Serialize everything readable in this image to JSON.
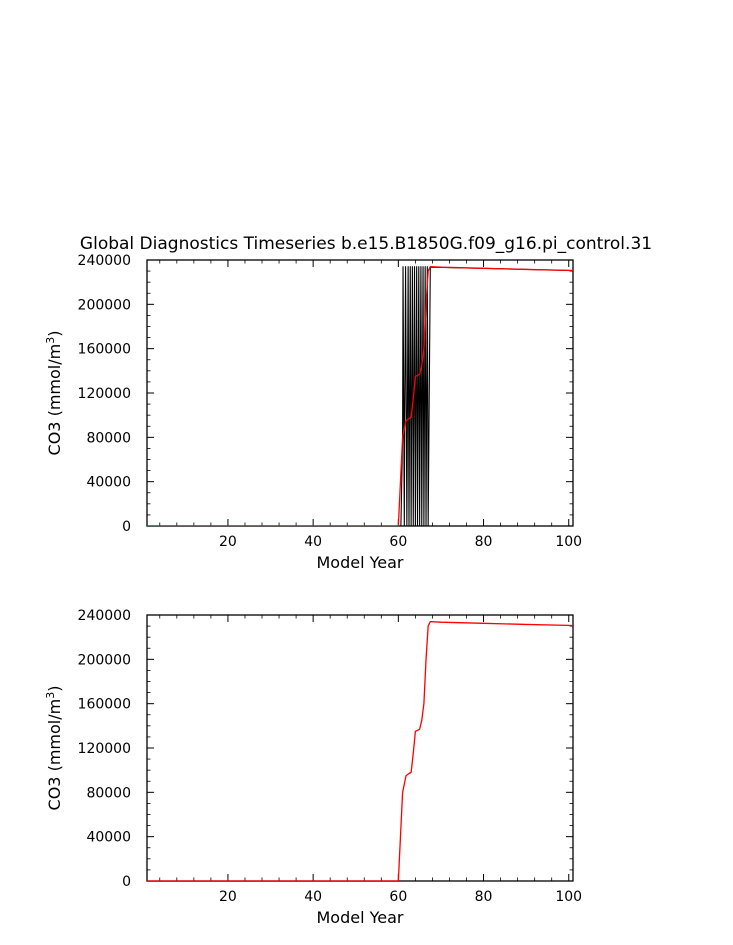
{
  "title": "Global Diagnostics Timeseries b.e15.B1850G.f09_g16.pi_control.31",
  "colors": {
    "background": "#ffffff",
    "axis": "#000000",
    "mean_line": "#ff0000",
    "raw_line": "#000000"
  },
  "chart_data": [
    {
      "type": "line",
      "title": "Global Diagnostics Timeseries b.e15.B1850G.f09_g16.pi_control.31",
      "xlabel": "Model Year",
      "ylabel": "CO3 (mmol/m",
      "ylabel_sup": "3",
      "ylabel_end": ")",
      "xlim": [
        1,
        101
      ],
      "ylim": [
        0,
        240000
      ],
      "xticks": [
        20,
        40,
        60,
        80,
        100
      ],
      "yticks": [
        0,
        40000,
        80000,
        120000,
        160000,
        200000,
        240000
      ],
      "xtick_labels": [
        "20",
        "40",
        "60",
        "80",
        "100"
      ],
      "ytick_labels": [
        "0",
        "40000",
        "80000",
        "120000",
        "160000",
        "200000",
        "240000"
      ],
      "series": [
        {
          "style": "oscillating",
          "color": "#000000",
          "x": [
            1,
            60.0,
            60.6,
            61.0,
            61.1,
            61.4,
            61.5,
            61.7,
            62.0,
            62.3,
            62.5,
            62.8,
            63.0,
            63.3,
            63.5,
            63.8,
            64.0,
            64.3,
            64.5,
            64.8,
            65.0,
            65.3,
            65.5,
            65.8,
            66.0,
            66.3,
            66.5,
            66.8,
            67.0,
            67.5,
            80,
            101
          ],
          "y": [
            0,
            0,
            0,
            80000,
            234000,
            0,
            98000,
            234000,
            0,
            234000,
            0,
            234000,
            0,
            234000,
            0,
            234000,
            0,
            234000,
            0,
            234000,
            0,
            234000,
            0,
            234000,
            0,
            234000,
            0,
            234000,
            0,
            233500,
            232500,
            230500
          ]
        },
        {
          "style": "smooth",
          "color": "#ff0000",
          "x": [
            1,
            60.0,
            60.5,
            61.0,
            61.8,
            62.5,
            63.0,
            63.5,
            64.0,
            64.5,
            65.0,
            65.5,
            66.0,
            66.5,
            67.0,
            67.5,
            70,
            80,
            90,
            101
          ],
          "y": [
            0,
            0,
            40000,
            80000,
            95000,
            97000,
            98000,
            115000,
            135000,
            136000,
            137000,
            145000,
            160000,
            200000,
            230000,
            234000,
            233500,
            232500,
            231500,
            230500
          ]
        }
      ]
    },
    {
      "type": "line",
      "xlabel": "Model Year",
      "ylabel": "CO3 (mmol/m",
      "ylabel_sup": "3",
      "ylabel_end": ")",
      "xlim": [
        1,
        101
      ],
      "ylim": [
        0,
        240000
      ],
      "xticks": [
        20,
        40,
        60,
        80,
        100
      ],
      "yticks": [
        0,
        40000,
        80000,
        120000,
        160000,
        200000,
        240000
      ],
      "xtick_labels": [
        "20",
        "40",
        "60",
        "80",
        "100"
      ],
      "ytick_labels": [
        "0",
        "40000",
        "80000",
        "120000",
        "160000",
        "200000",
        "240000"
      ],
      "series": [
        {
          "style": "smooth",
          "color": "#ff0000",
          "x": [
            1,
            60.0,
            60.5,
            61.0,
            61.8,
            62.5,
            63.0,
            63.5,
            64.0,
            64.5,
            65.0,
            65.5,
            66.0,
            66.5,
            67.0,
            67.5,
            70,
            80,
            90,
            101
          ],
          "y": [
            0,
            0,
            40000,
            80000,
            95000,
            97000,
            98000,
            115000,
            135000,
            136000,
            137000,
            145000,
            160000,
            200000,
            230000,
            234000,
            233500,
            232500,
            231500,
            230500
          ]
        }
      ]
    }
  ]
}
